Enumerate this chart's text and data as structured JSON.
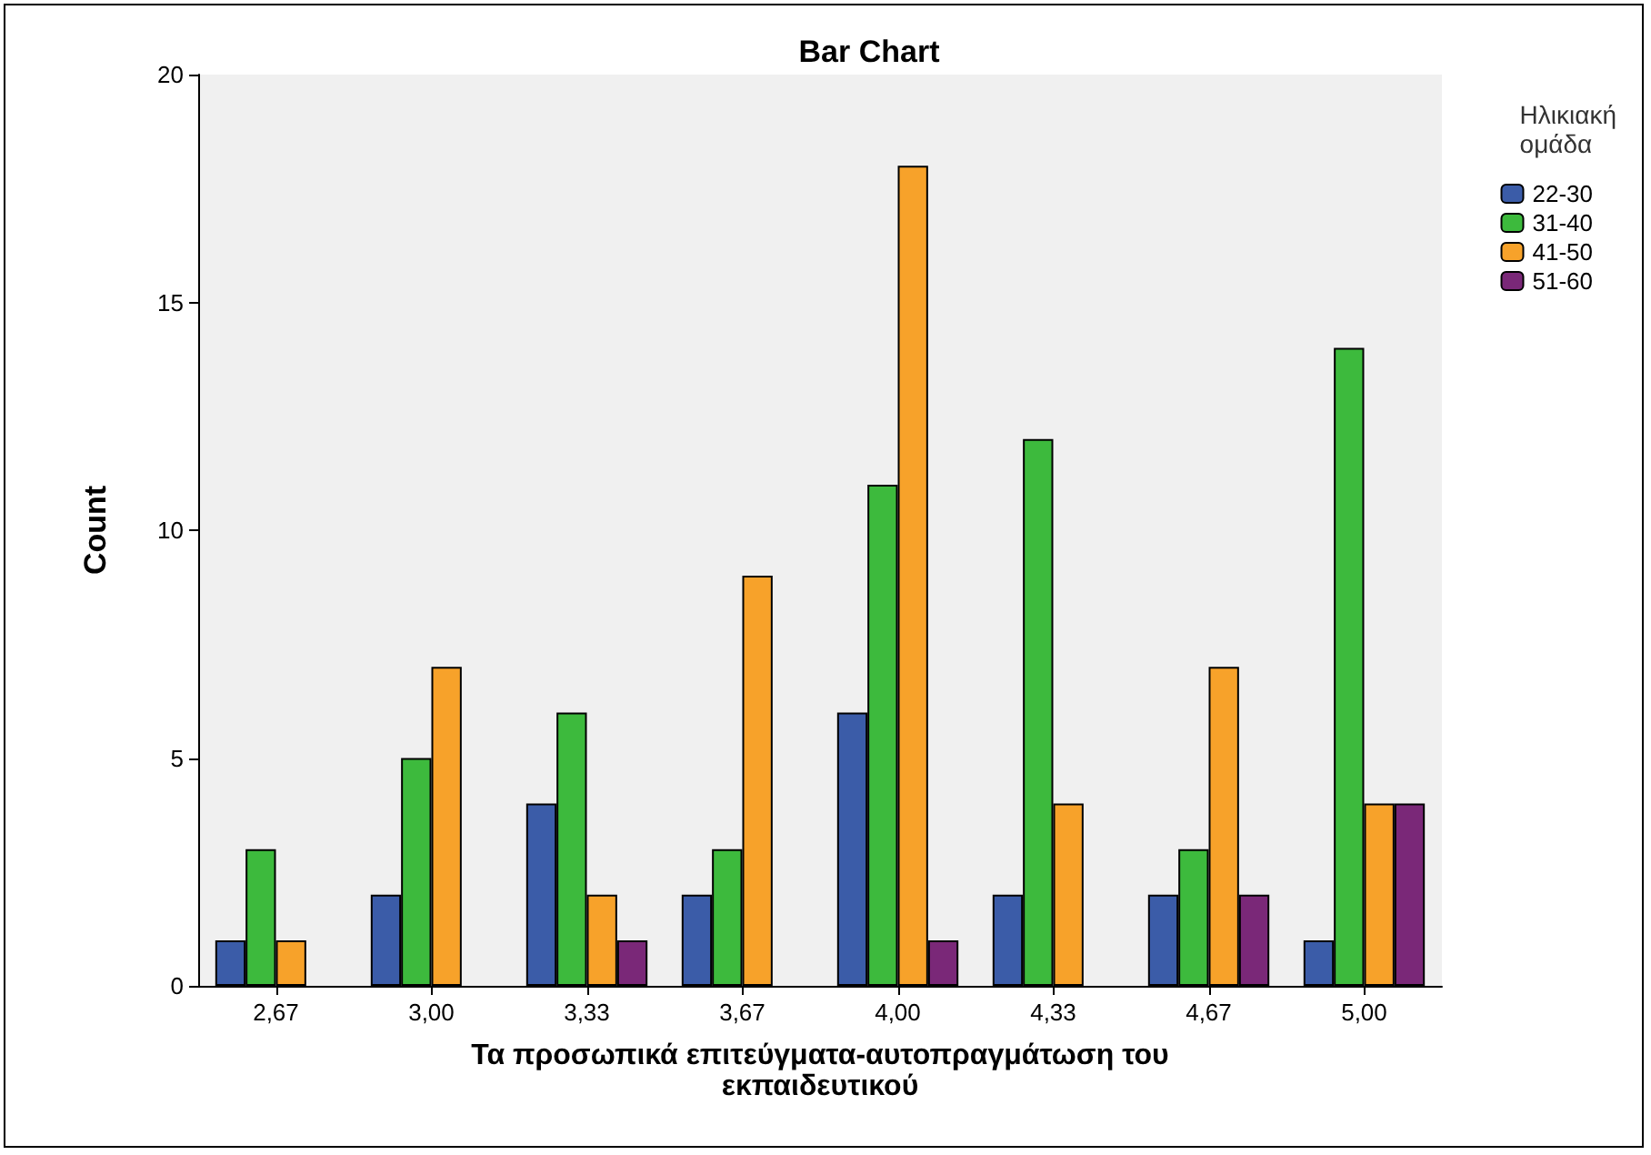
{
  "chart_data": {
    "type": "bar",
    "title": "Bar Chart",
    "xlabel": "Τα προσωπικά επιτεύγματα-αυτοπραγμάτωση του\nεκπαιδευτικού",
    "ylabel": "Count",
    "legend_title": "Ηλικιακή\nομάδα",
    "categories": [
      "2,67",
      "3,00",
      "3,33",
      "3,67",
      "4,00",
      "4,33",
      "4,67",
      "5,00"
    ],
    "series": [
      {
        "name": "22-30",
        "color": "#3b5ca8",
        "values": [
          1,
          2,
          4,
          2,
          6,
          2,
          2,
          1
        ]
      },
      {
        "name": "31-40",
        "color": "#3dba3d",
        "values": [
          3,
          5,
          6,
          3,
          11,
          12,
          3,
          14
        ]
      },
      {
        "name": "41-50",
        "color": "#f7a22a",
        "values": [
          1,
          7,
          2,
          9,
          18,
          4,
          7,
          4
        ]
      },
      {
        "name": "51-60",
        "color": "#7a2878",
        "values": [
          null,
          null,
          1,
          null,
          1,
          null,
          2,
          4
        ]
      }
    ],
    "ylim": [
      0,
      20
    ],
    "yticks": [
      0,
      5,
      10,
      15,
      20
    ],
    "grid": false,
    "legend": "top right"
  }
}
